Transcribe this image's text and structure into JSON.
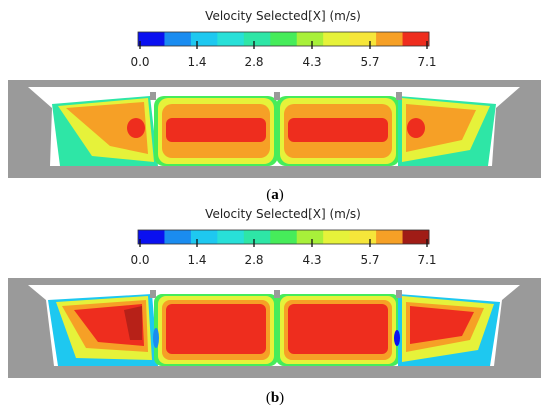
{
  "panels": [
    {
      "legend_title": "Velocity Selected[X] (m/s)",
      "ticks": [
        "0.0",
        "1.4",
        "2.8",
        "4.3",
        "5.7",
        "7.1"
      ],
      "caption_open": "(",
      "caption_letter": "a",
      "caption_close": ")"
    },
    {
      "legend_title": "Velocity Selected[X] (m/s)",
      "ticks": [
        "0.0",
        "1.4",
        "2.8",
        "4.3",
        "5.7",
        "7.1"
      ],
      "caption_open": "(",
      "caption_letter": "b",
      "caption_close": ")"
    }
  ],
  "colormap": [
    "#0a10f0",
    "#1a8cf0",
    "#1ec8f0",
    "#28e0d8",
    "#2ee6a6",
    "#46ec5a",
    "#a8f03a",
    "#e6f23a",
    "#f6e63a",
    "#f6a026",
    "#ee2d1e"
  ],
  "colormap_b_top": "#a01c16"
}
